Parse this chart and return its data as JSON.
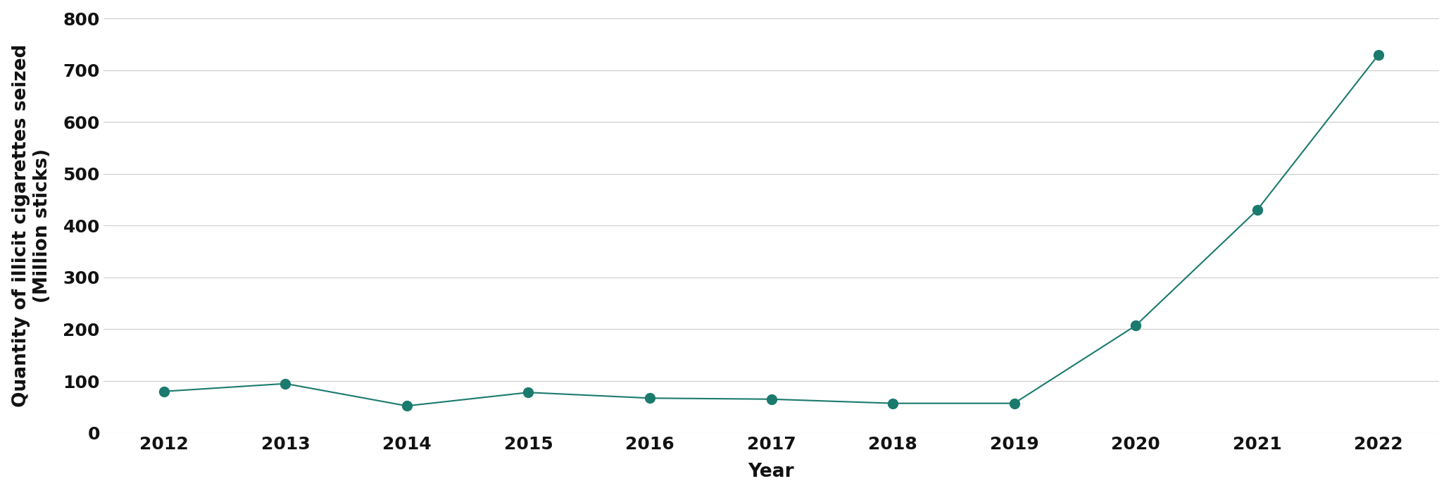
{
  "years": [
    2012,
    2013,
    2014,
    2015,
    2016,
    2017,
    2018,
    2019,
    2020,
    2021,
    2022
  ],
  "values": [
    80,
    95,
    52,
    78,
    67,
    65,
    57,
    57,
    207,
    430,
    730
  ],
  "line_color": "#1a7a6e",
  "marker_color": "#1a7a6e",
  "background_color": "#ffffff",
  "grid_color": "#cccccc",
  "ylabel_line1": "Quantity of illicit cigarettes seized",
  "ylabel_line2": "(Million sticks)",
  "xlabel": "Year",
  "ylim": [
    0,
    800
  ],
  "yticks": [
    0,
    100,
    200,
    300,
    400,
    500,
    600,
    700,
    800
  ],
  "xlim": [
    2011.5,
    2022.5
  ],
  "marker_size": 10,
  "line_width": 1.5,
  "tick_label_fontsize": 18,
  "axis_label_fontsize": 19,
  "font_weight": "bold"
}
